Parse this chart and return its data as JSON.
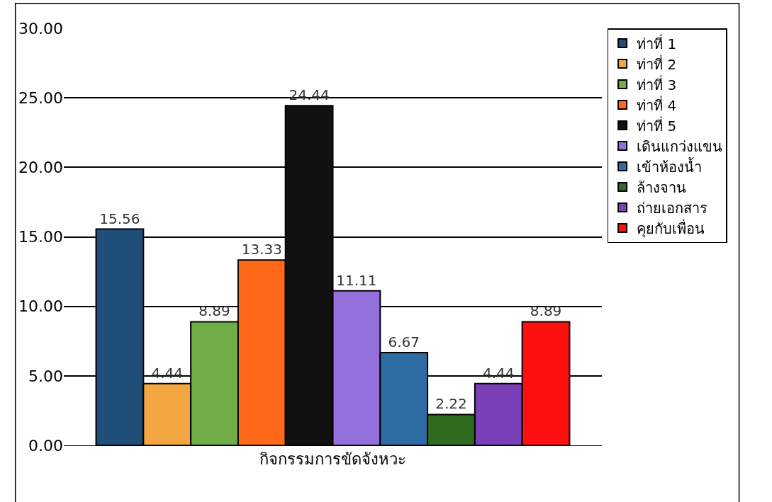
{
  "chart_data": {
    "type": "bar",
    "categories": [
      "กิจกรรมการขัดจังหวะ"
    ],
    "series": [
      {
        "name": "ท่าที่ 1",
        "color": "#1f4e79",
        "values": [
          15.56
        ]
      },
      {
        "name": "ท่าที่ 2",
        "color": "#f4a640",
        "values": [
          4.44
        ]
      },
      {
        "name": "ท่าที่ 3",
        "color": "#70ad47",
        "values": [
          8.89
        ]
      },
      {
        "name": "ท่าที่ 4",
        "color": "#ff6a1a",
        "values": [
          13.33
        ]
      },
      {
        "name": "ท่าที่ 5",
        "color": "#111111",
        "values": [
          24.44
        ]
      },
      {
        "name": "เดินแกว่งแขน",
        "color": "#9370db",
        "values": [
          11.11
        ]
      },
      {
        "name": "เข้าห้องน้ำ",
        "color": "#2e6da4",
        "values": [
          6.67
        ]
      },
      {
        "name": "ล้างจาน",
        "color": "#2e6b1e",
        "values": [
          2.22
        ]
      },
      {
        "name": "ถ่ายเอกสาร",
        "color": "#7b3fb8",
        "values": [
          4.44
        ]
      },
      {
        "name": "คุยกับเพื่อน",
        "color": "#ff1010",
        "values": [
          8.89
        ]
      }
    ],
    "ylim": [
      0,
      30
    ],
    "yticks": [
      {
        "value": 0,
        "label": "0.00"
      },
      {
        "value": 5,
        "label": "5.00"
      },
      {
        "value": 10,
        "label": "10.00"
      },
      {
        "value": 15,
        "label": "15.00"
      },
      {
        "value": 20,
        "label": "20.00"
      },
      {
        "value": 25,
        "label": "25.00"
      },
      {
        "value": 30,
        "label": "30.00"
      }
    ],
    "grid": "y",
    "legend": "right",
    "data_labels": true
  }
}
